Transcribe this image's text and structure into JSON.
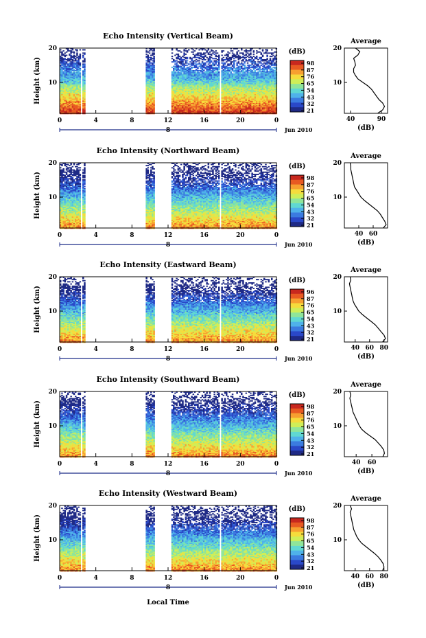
{
  "chart_data": [
    {
      "type": "heatmap",
      "title": "Echo Intensity (Vertical Beam)",
      "ylabel": "Height (km)",
      "colorbar_unit": "(dB)",
      "colorbar_ticks": [
        "98",
        "87",
        "76",
        "65",
        "54",
        "43",
        "32",
        "21"
      ],
      "x_ticks": [
        "0",
        "4",
        "8",
        "12",
        "16",
        "20",
        "0"
      ],
      "date_day": "8",
      "date_label": "Jun 2010",
      "y_ticks": [
        "20",
        "10"
      ],
      "profile": {
        "title": "Average",
        "xlabel": "(dB)",
        "x_ticks": [
          "40",
          "90"
        ],
        "xlim": [
          30,
          100
        ],
        "heights": [
          1,
          2,
          3,
          4,
          5,
          6,
          7,
          8,
          9,
          10,
          11,
          12,
          13,
          14,
          15,
          16,
          17,
          18,
          19,
          20
        ],
        "values": [
          84,
          92,
          95,
          92,
          86,
          82,
          78,
          74,
          68,
          60,
          52,
          48,
          45,
          45,
          48,
          47,
          45,
          52,
          55,
          48
        ]
      }
    },
    {
      "type": "heatmap",
      "title": "Echo Intensity (Northward Beam)",
      "ylabel": "Height (km)",
      "colorbar_unit": "(dB)",
      "colorbar_ticks": [
        "98",
        "87",
        "76",
        "65",
        "54",
        "43",
        "32",
        "21"
      ],
      "x_ticks": [
        "0",
        "4",
        "8",
        "12",
        "16",
        "20",
        "0"
      ],
      "date_day": "8",
      "date_label": "Jun 2010",
      "y_ticks": [
        "20",
        "10"
      ],
      "profile": {
        "title": "Average",
        "xlabel": "(dB)",
        "x_ticks": [
          "40",
          "60"
        ],
        "xlim": [
          20,
          80
        ],
        "heights": [
          1,
          2,
          3,
          4,
          5,
          6,
          7,
          8,
          9,
          10,
          11,
          12,
          13,
          14,
          15,
          16,
          17,
          18,
          19,
          20
        ],
        "values": [
          74,
          78,
          76,
          73,
          70,
          66,
          60,
          54,
          48,
          43,
          40,
          37,
          34,
          33,
          32,
          31,
          30,
          29,
          29,
          28
        ]
      }
    },
    {
      "type": "heatmap",
      "title": "Echo Intensity (Eastward Beam)",
      "ylabel": "Height (km)",
      "colorbar_unit": "(dB)",
      "colorbar_ticks": [
        "96",
        "87",
        "76",
        "65",
        "54",
        "43",
        "32",
        "21"
      ],
      "x_ticks": [
        "0",
        "4",
        "8",
        "12",
        "16",
        "20",
        "0"
      ],
      "date_day": "8",
      "date_label": "Jun 2010",
      "y_ticks": [
        "20",
        "10"
      ],
      "profile": {
        "title": "Average",
        "xlabel": "(dB)",
        "x_ticks": [
          "40",
          "60",
          "80"
        ],
        "xlim": [
          25,
          85
        ],
        "heights": [
          1,
          2,
          3,
          4,
          5,
          6,
          7,
          8,
          9,
          10,
          11,
          12,
          13,
          14,
          15,
          16,
          17,
          18,
          19,
          20
        ],
        "values": [
          78,
          82,
          80,
          76,
          72,
          68,
          62,
          56,
          50,
          45,
          42,
          39,
          37,
          36,
          35,
          34,
          33,
          32,
          34,
          33
        ]
      }
    },
    {
      "type": "heatmap",
      "title": "Echo Intensity (Southward Beam)",
      "ylabel": "Height (km)",
      "colorbar_unit": "(dB)",
      "colorbar_ticks": [
        "98",
        "87",
        "76",
        "65",
        "54",
        "43",
        "32",
        "21"
      ],
      "x_ticks": [
        "0",
        "4",
        "8",
        "12",
        "16",
        "20",
        "0"
      ],
      "date_day": "8",
      "date_label": "Jun 2010",
      "y_ticks": [
        "20",
        "10"
      ],
      "profile": {
        "title": "Average",
        "xlabel": "(dB)",
        "x_ticks": [
          "40",
          "60"
        ],
        "xlim": [
          25,
          80
        ],
        "heights": [
          1,
          2,
          3,
          4,
          5,
          6,
          7,
          8,
          9,
          10,
          11,
          12,
          13,
          14,
          15,
          16,
          17,
          18,
          19,
          20
        ],
        "values": [
          74,
          76,
          75,
          72,
          68,
          64,
          58,
          52,
          47,
          44,
          42,
          40,
          38,
          36,
          35,
          34,
          33,
          32,
          33,
          32
        ]
      }
    },
    {
      "type": "heatmap",
      "title": "Echo Intensity (Westward Beam)",
      "ylabel": "Height (km)",
      "colorbar_unit": "(dB)",
      "colorbar_ticks": [
        "98",
        "87",
        "76",
        "65",
        "54",
        "43",
        "32",
        "21"
      ],
      "x_ticks": [
        "0",
        "4",
        "8",
        "12",
        "16",
        "20",
        "0"
      ],
      "date_day": "8",
      "date_label": "Jun 2010",
      "y_ticks": [
        "20",
        "10"
      ],
      "profile": {
        "title": "Average",
        "xlabel": "(dB)",
        "x_ticks": [
          "40",
          "60",
          "80"
        ],
        "xlim": [
          25,
          85
        ],
        "heights": [
          1,
          2,
          3,
          4,
          5,
          6,
          7,
          8,
          9,
          10,
          11,
          12,
          13,
          14,
          15,
          16,
          17,
          18,
          19,
          20
        ],
        "values": [
          78,
          80,
          79,
          76,
          72,
          67,
          61,
          55,
          49,
          45,
          42,
          40,
          38,
          37,
          36,
          35,
          34,
          33,
          35,
          33
        ]
      }
    }
  ],
  "shared": {
    "xlabel": "Local Time",
    "xlim_hours": [
      0,
      24
    ],
    "ylim_km": [
      1,
      20
    ],
    "data_gaps_hours": [
      [
        2.3,
        2.5
      ],
      [
        2.7,
        9.5
      ],
      [
        10.5,
        12.3
      ],
      [
        17.6,
        17.8
      ]
    ],
    "colormap": [
      "#1f2a86",
      "#2a48c8",
      "#3b7be0",
      "#4fb2ea",
      "#60d8d2",
      "#8fe59a",
      "#cfee58",
      "#f5dc3c",
      "#f7a030",
      "#e85a22",
      "#c8281e"
    ]
  }
}
